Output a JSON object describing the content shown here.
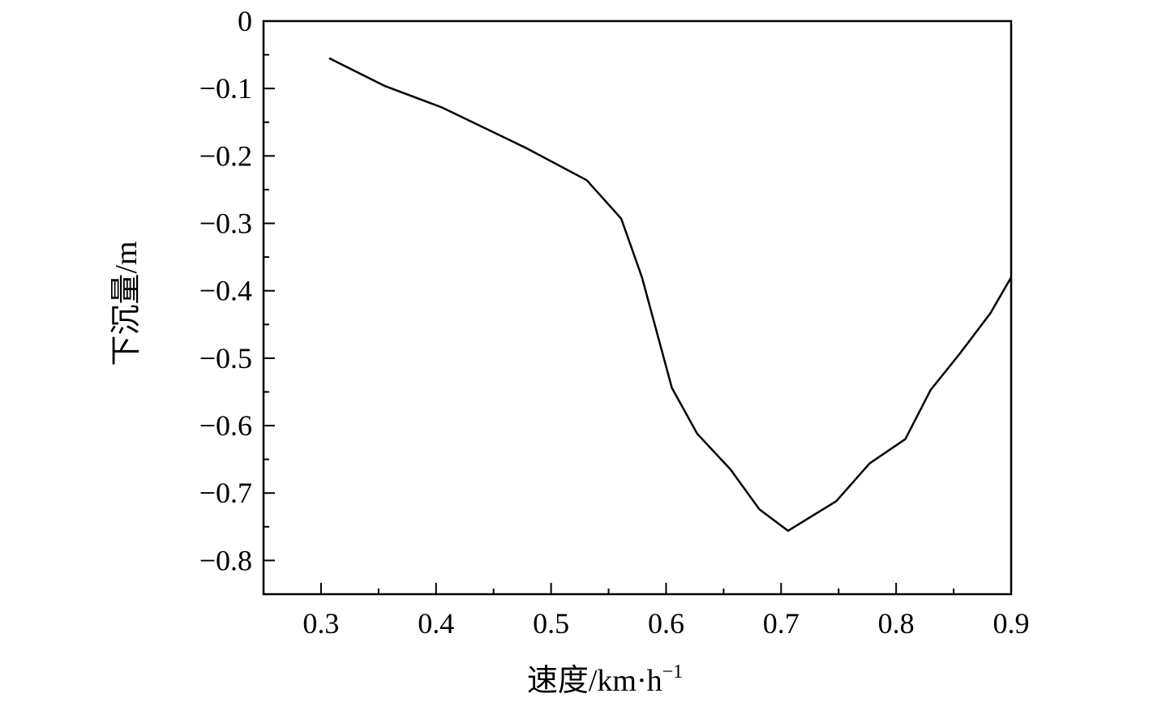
{
  "chart_data": {
    "type": "line",
    "title": "",
    "xlabel": "速度/km·h",
    "xlabel_superscript": "−1",
    "ylabel": "下沉量/m",
    "xlim": [
      0.25,
      0.9
    ],
    "ylim": [
      -0.85,
      0
    ],
    "xticks": [
      0.3,
      0.4,
      0.5,
      0.6,
      0.7,
      0.8,
      0.9
    ],
    "xtick_labels": [
      "0.3",
      "0.4",
      "0.5",
      "0.6",
      "0.7",
      "0.8",
      "0.9"
    ],
    "yticks": [
      0,
      -0.1,
      -0.2,
      -0.3,
      -0.4,
      -0.5,
      -0.6,
      -0.7,
      -0.8
    ],
    "ytick_labels": [
      "0",
      "−0.1",
      "−0.2",
      "−0.3",
      "−0.4",
      "−0.5",
      "−0.6",
      "−0.7",
      "−0.8"
    ],
    "grid": false,
    "series": [
      {
        "x": [
          0.307,
          0.355,
          0.405,
          0.478,
          0.531,
          0.561,
          0.579,
          0.605,
          0.627,
          0.656,
          0.681,
          0.706,
          0.748,
          0.777,
          0.808,
          0.83,
          0.855,
          0.882,
          0.9
        ],
        "y": [
          -0.055,
          -0.096,
          -0.128,
          -0.188,
          -0.236,
          -0.293,
          -0.38,
          -0.544,
          -0.612,
          -0.665,
          -0.724,
          -0.756,
          -0.712,
          -0.656,
          -0.62,
          -0.547,
          -0.494,
          -0.433,
          -0.38
        ],
        "color": "#000000"
      }
    ]
  }
}
